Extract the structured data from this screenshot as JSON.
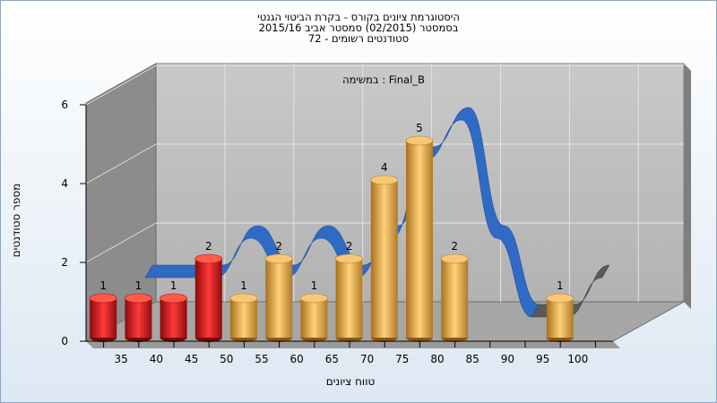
{
  "title_lines": [
    "היסטוגרמת ציונים בקורס - בקרת הביטוי הגנטי",
    "בסמסטר  (02/2015)  סמסטר אביב 2015/16",
    "סטודנטים רשומים - 72"
  ],
  "chart_data": {
    "type": "bar",
    "annotation": "במשימה : Final_B",
    "xlabel": "טווח ציונים",
    "ylabel": "מספר סטודנטים",
    "ylim": [
      0,
      6
    ],
    "yticks": [
      0,
      2,
      4,
      6
    ],
    "grid": true,
    "categories": [
      "35",
      "40",
      "45",
      "50",
      "55",
      "60",
      "65",
      "70",
      "75",
      "80",
      "85",
      "90",
      "95",
      "100"
    ],
    "values": [
      1,
      1,
      1,
      2,
      1,
      2,
      1,
      2,
      4,
      5,
      2,
      0,
      0,
      1
    ],
    "fail_threshold": 55,
    "colors": {
      "fail": "#e01818",
      "pass": "#e3a63f",
      "trend": "#2f6bc4",
      "trend_tail": "#5a5a5a"
    }
  }
}
